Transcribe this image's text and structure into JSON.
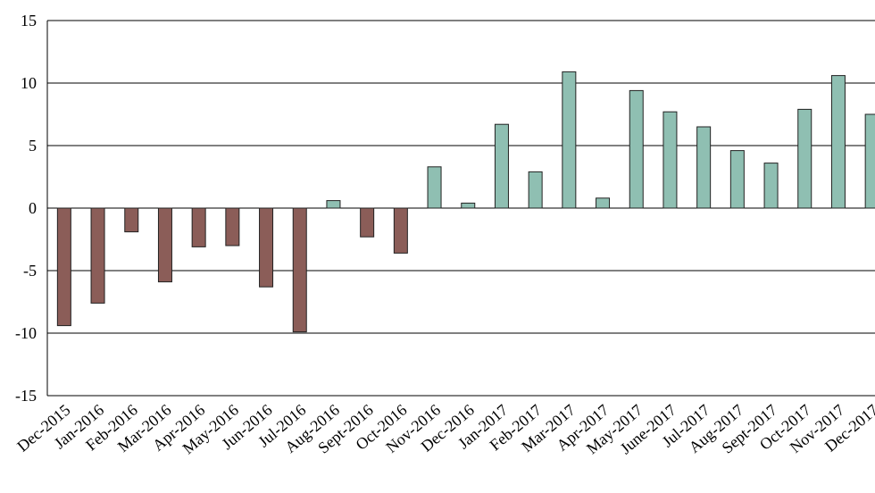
{
  "chart_data": {
    "type": "bar",
    "categories": [
      "Dec-2015",
      "Jan-2016",
      "Feb-2016",
      "Mar-2016",
      "Apr-2016",
      "May-2016",
      "Jun-2016",
      "Jul-2016",
      "Aug-2016",
      "Sept-2016",
      "Oct-2016",
      "Nov-2016",
      "Dec-2016",
      "Jan-2017",
      "Feb-2017",
      "Mar-2017",
      "Apr-2017",
      "May-2017",
      "June-2017",
      "Jul-2017",
      "Aug-2017",
      "Sept-2017",
      "Oct-2017",
      "Nov-2017",
      "Dec-2017"
    ],
    "values": [
      -9.4,
      -7.6,
      -1.9,
      -5.9,
      -3.1,
      -3.0,
      -6.3,
      -9.9,
      0.6,
      -2.3,
      -3.6,
      3.3,
      0.4,
      6.7,
      2.9,
      10.9,
      0.8,
      9.4,
      7.7,
      6.5,
      4.6,
      3.6,
      7.9,
      10.6,
      7.5
    ],
    "positive_color": "#8fbfb2",
    "negative_color": "#8b5d58",
    "ylim": [
      -15,
      15
    ],
    "yticks": [
      -15,
      -10,
      -5,
      0,
      5,
      10,
      15
    ],
    "grid": true
  }
}
